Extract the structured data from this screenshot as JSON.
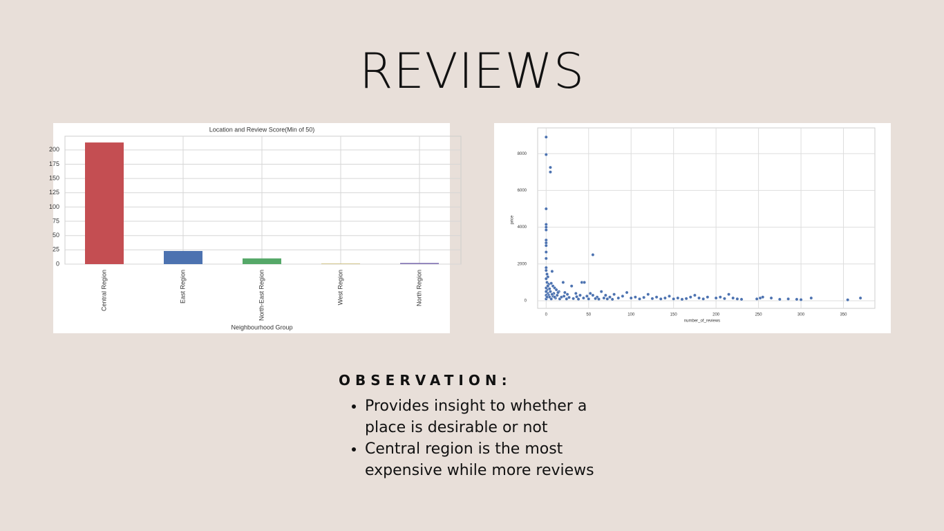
{
  "title": "REVIEWS",
  "chart_data": [
    {
      "type": "bar",
      "title": "Location and Review Score(Min of 50)",
      "x_label": "Neighbourhood Group",
      "categories": [
        "Central Region",
        "East Region",
        "North-East Region",
        "West Region",
        "North Region"
      ],
      "values": [
        213,
        23,
        10,
        1,
        2
      ],
      "colors": [
        "#c44e52",
        "#4c72b0",
        "#55a868",
        "#ccb974",
        "#8172b2"
      ],
      "ylim": [
        0,
        224
      ],
      "yticks": [
        0,
        25,
        50,
        75,
        100,
        125,
        150,
        175,
        200
      ],
      "grid": true
    },
    {
      "type": "scatter",
      "x_label": "number_of_reviews",
      "y_label": "price",
      "color": "#4c72b0",
      "x": [
        0,
        0,
        5,
        5,
        0,
        0,
        0,
        0,
        0,
        0,
        0,
        0,
        0,
        55,
        7,
        0,
        0,
        1,
        2,
        0,
        1,
        3,
        6,
        8,
        10,
        12,
        15,
        20,
        22,
        25,
        30,
        35,
        42,
        45,
        40,
        48,
        52,
        60,
        65,
        70,
        75,
        80,
        85,
        90,
        95,
        100,
        105,
        110,
        115,
        120,
        125,
        130,
        135,
        140,
        145,
        150,
        155,
        160,
        165,
        170,
        175,
        180,
        185,
        190,
        200,
        205,
        210,
        215,
        220,
        225,
        230,
        248,
        252,
        255,
        265,
        275,
        285,
        295,
        300,
        312,
        355,
        370,
        1,
        2,
        3,
        4,
        5,
        6,
        8,
        9,
        11,
        13,
        16,
        18,
        21,
        24,
        27,
        32,
        36,
        38,
        44,
        50,
        55,
        58,
        62,
        68,
        72,
        78,
        0,
        0,
        0,
        0,
        1,
        2,
        4,
        7,
        10,
        14
      ],
      "values": [
        8900,
        7950,
        7250,
        7000,
        5000,
        4150,
        4000,
        3850,
        3300,
        3150,
        3000,
        2650,
        2300,
        2500,
        1600,
        1800,
        1650,
        1450,
        1300,
        1200,
        1000,
        900,
        950,
        800,
        700,
        600,
        500,
        1000,
        450,
        350,
        800,
        400,
        1000,
        1000,
        300,
        250,
        400,
        200,
        500,
        300,
        200,
        350,
        150,
        250,
        450,
        150,
        200,
        100,
        180,
        350,
        120,
        200,
        100,
        150,
        250,
        100,
        150,
        80,
        120,
        200,
        300,
        150,
        100,
        200,
        150,
        200,
        120,
        350,
        150,
        100,
        80,
        100,
        150,
        200,
        150,
        80,
        100,
        80,
        60,
        150,
        50,
        150,
        600,
        400,
        300,
        200,
        500,
        100,
        250,
        400,
        150,
        300,
        100,
        200,
        250,
        100,
        180,
        120,
        220,
        90,
        150,
        100,
        300,
        120,
        90,
        150,
        100,
        80,
        700,
        500,
        300,
        100,
        200,
        800,
        650,
        350,
        200,
        450
      ],
      "xlim": [
        -10,
        387
      ],
      "ylim": [
        -413,
        9398
      ],
      "xticks": [
        0,
        50,
        100,
        150,
        200,
        250,
        300,
        350
      ],
      "yticks": [
        0,
        2000,
        4000,
        6000,
        8000
      ],
      "grid": true
    }
  ],
  "observation": {
    "heading": "OBSERVATION:",
    "items": [
      "Provides insight to whether a place is desirable or not",
      "Central region is the most expensive while more reviews"
    ]
  }
}
